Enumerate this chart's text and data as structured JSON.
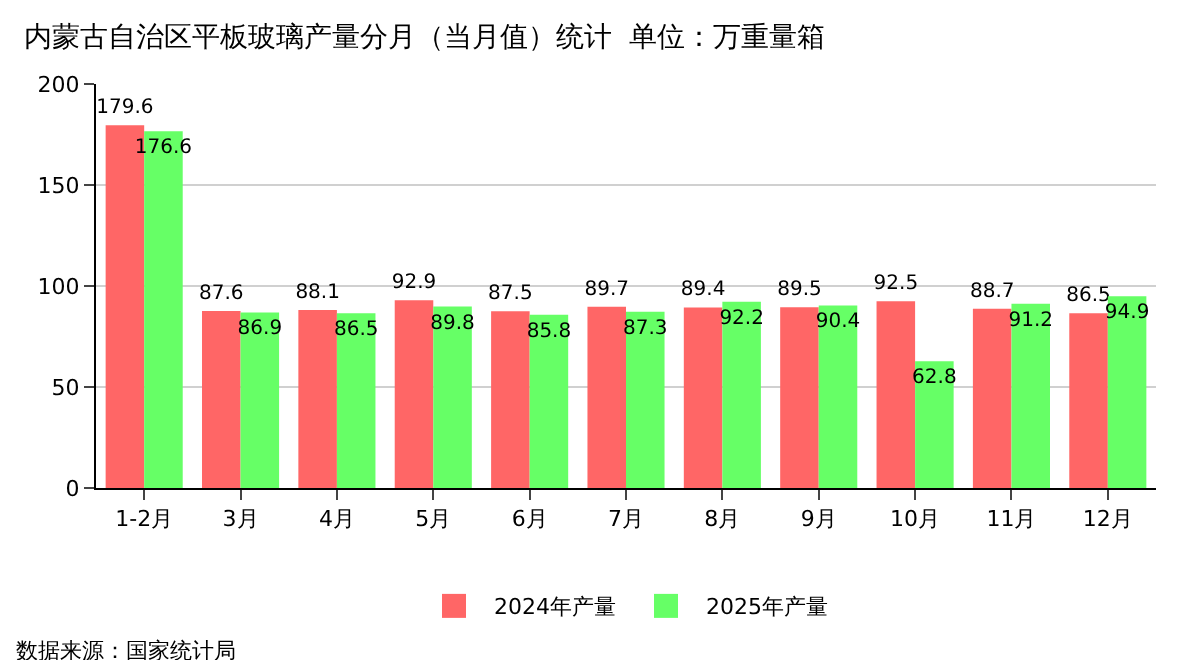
{
  "chart_data": {
    "type": "bar",
    "title": "内蒙古自治区平板玻璃产量分月（当月值）统计  单位：万重量箱",
    "categories": [
      "1-2月",
      "3月",
      "4月",
      "5月",
      "6月",
      "7月",
      "8月",
      "9月",
      "10月",
      "11月",
      "12月"
    ],
    "series": [
      {
        "name": "2024年产量",
        "color": "#ff6666",
        "values": [
          179.6,
          87.6,
          88.1,
          92.9,
          87.5,
          89.7,
          89.4,
          89.5,
          92.5,
          88.7,
          86.5
        ]
      },
      {
        "name": "2025年产量",
        "color": "#66ff66",
        "values": [
          176.6,
          86.9,
          86.5,
          89.8,
          85.8,
          87.3,
          92.2,
          90.4,
          62.8,
          91.2,
          94.9
        ]
      }
    ],
    "ylim": [
      0,
      200
    ],
    "yticks": [
      0,
      50,
      100,
      150,
      200
    ],
    "grid": "y",
    "legend": "bottom",
    "data_labels": true,
    "annotations": [
      "数据来源：国家统计局"
    ]
  }
}
